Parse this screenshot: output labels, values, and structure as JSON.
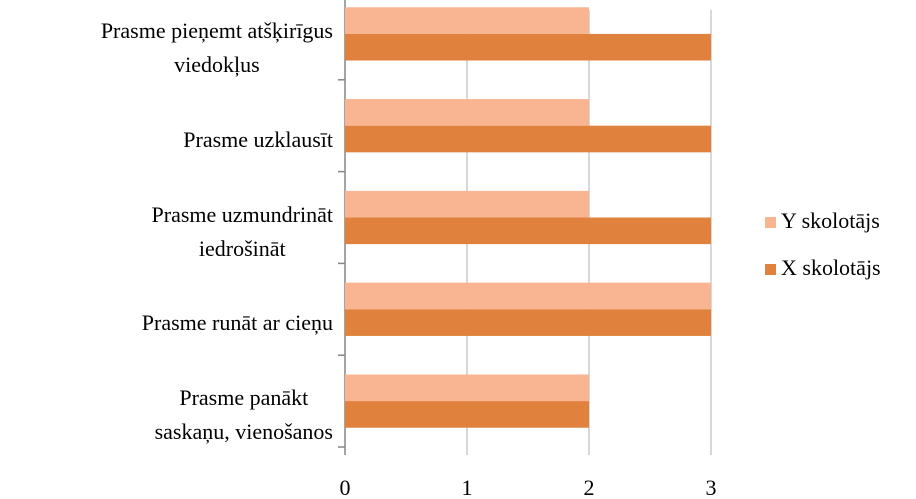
{
  "chart_data": {
    "type": "bar",
    "orientation": "horizontal",
    "categories": [
      "Prasme pieņemt atšķirīgus\nviedokļus",
      "Prasme uzklausīt",
      "Prasme uzmundrināt\niedrošināt",
      "Prasme runāt ar cieņu",
      "Prasme panākt\nsaskaņu, vienošanos"
    ],
    "series": [
      {
        "name": "Y skolotājs",
        "color": "#f9b592",
        "values": [
          2,
          2,
          2,
          3,
          2
        ]
      },
      {
        "name": "X skolotājs",
        "color": "#e0823d",
        "values": [
          3,
          3,
          3,
          3,
          2
        ]
      }
    ],
    "xlim": [
      0,
      3
    ],
    "xticks": [
      0,
      1,
      2,
      3
    ],
    "grid": true,
    "legend": "right"
  }
}
